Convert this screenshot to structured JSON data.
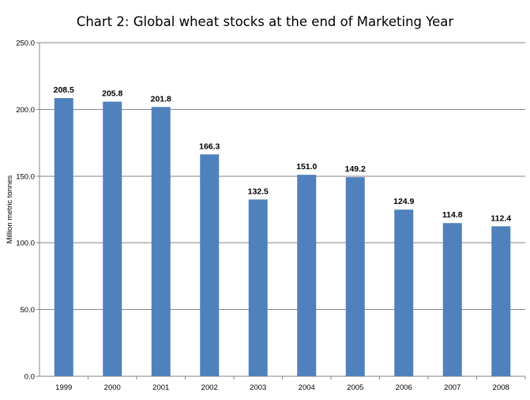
{
  "chart_data": {
    "type": "bar",
    "title": "Chart 2: Global wheat stocks at the end of Marketing Year",
    "xlabel": "",
    "ylabel": "Million metric tonnes",
    "categories": [
      "1999",
      "2000",
      "2001",
      "2002",
      "2003",
      "2004",
      "2005",
      "2006",
      "2007",
      "2008"
    ],
    "values": [
      208.5,
      205.8,
      201.8,
      166.3,
      132.5,
      151.0,
      149.2,
      124.9,
      114.8,
      112.4
    ],
    "data_labels": [
      "208.5",
      "205.8",
      "201.8",
      "166.3",
      "132.5",
      "151.0",
      "149.2",
      "124.9",
      "114.8",
      "112.4"
    ],
    "ylim": [
      0,
      250
    ],
    "yticks": [
      0,
      50,
      100,
      150,
      200,
      250
    ],
    "ytick_labels": [
      "0.0",
      "50.0",
      "100.0",
      "150.0",
      "200.0",
      "250.0"
    ],
    "grid": true,
    "legend": "none",
    "bar_color": "#4f81bd",
    "grid_color": "#868686"
  }
}
